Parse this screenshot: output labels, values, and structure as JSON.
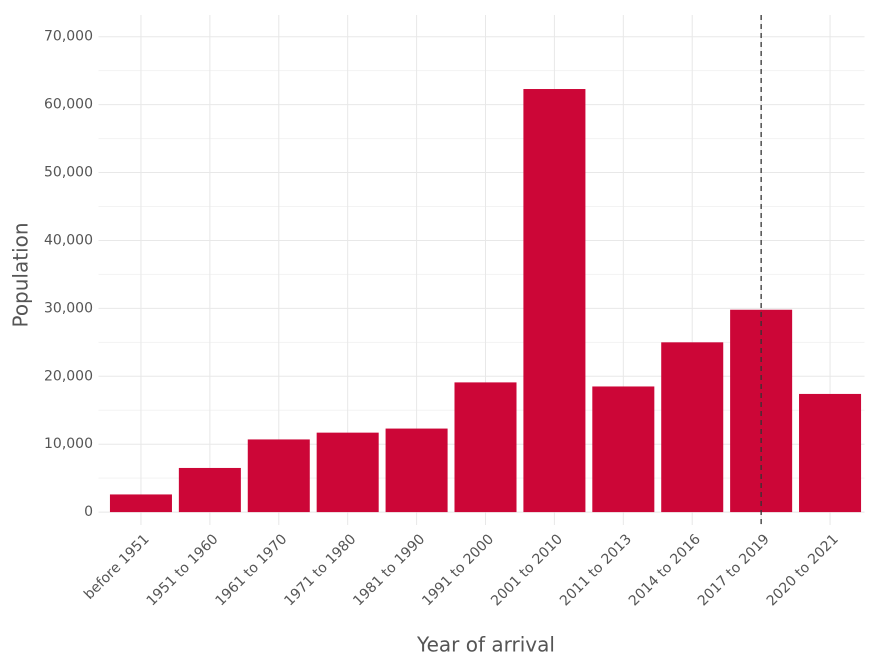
{
  "chart_data": {
    "type": "bar",
    "x_label": "Year of arrival",
    "y_label": "Population",
    "categories": [
      "before 1951",
      "1951 to 1960",
      "1961 to 1970",
      "1971 to 1980",
      "1981 to 1990",
      "1991 to 2000",
      "2001 to 2010",
      "2011 to 2013",
      "2014 to 2016",
      "2017 to 2019",
      "2020 to 2021"
    ],
    "values": [
      2600,
      6500,
      10700,
      11700,
      12300,
      19100,
      62300,
      18500,
      25000,
      29800,
      17400
    ],
    "color": "#cc0637",
    "ylim": [
      -1900,
      73200
    ],
    "yticks": [
      0,
      {
        "value": 10000,
        "label": "10,000"
      },
      {
        "value": 20000,
        "label": "20,000"
      },
      {
        "value": 30000,
        "label": "30,000"
      },
      {
        "value": 40000,
        "label": "40,000"
      },
      {
        "value": 50000,
        "label": "50,000"
      },
      {
        "value": 60000,
        "label": "60,000"
      },
      {
        "value": 70000,
        "label": "70,000"
      }
    ],
    "minor_yticks": [
      5000,
      15000,
      25000,
      35000,
      45000,
      55000,
      65000
    ],
    "grid": true,
    "reference_line": {
      "category_index": 9,
      "style": "dashed"
    }
  }
}
